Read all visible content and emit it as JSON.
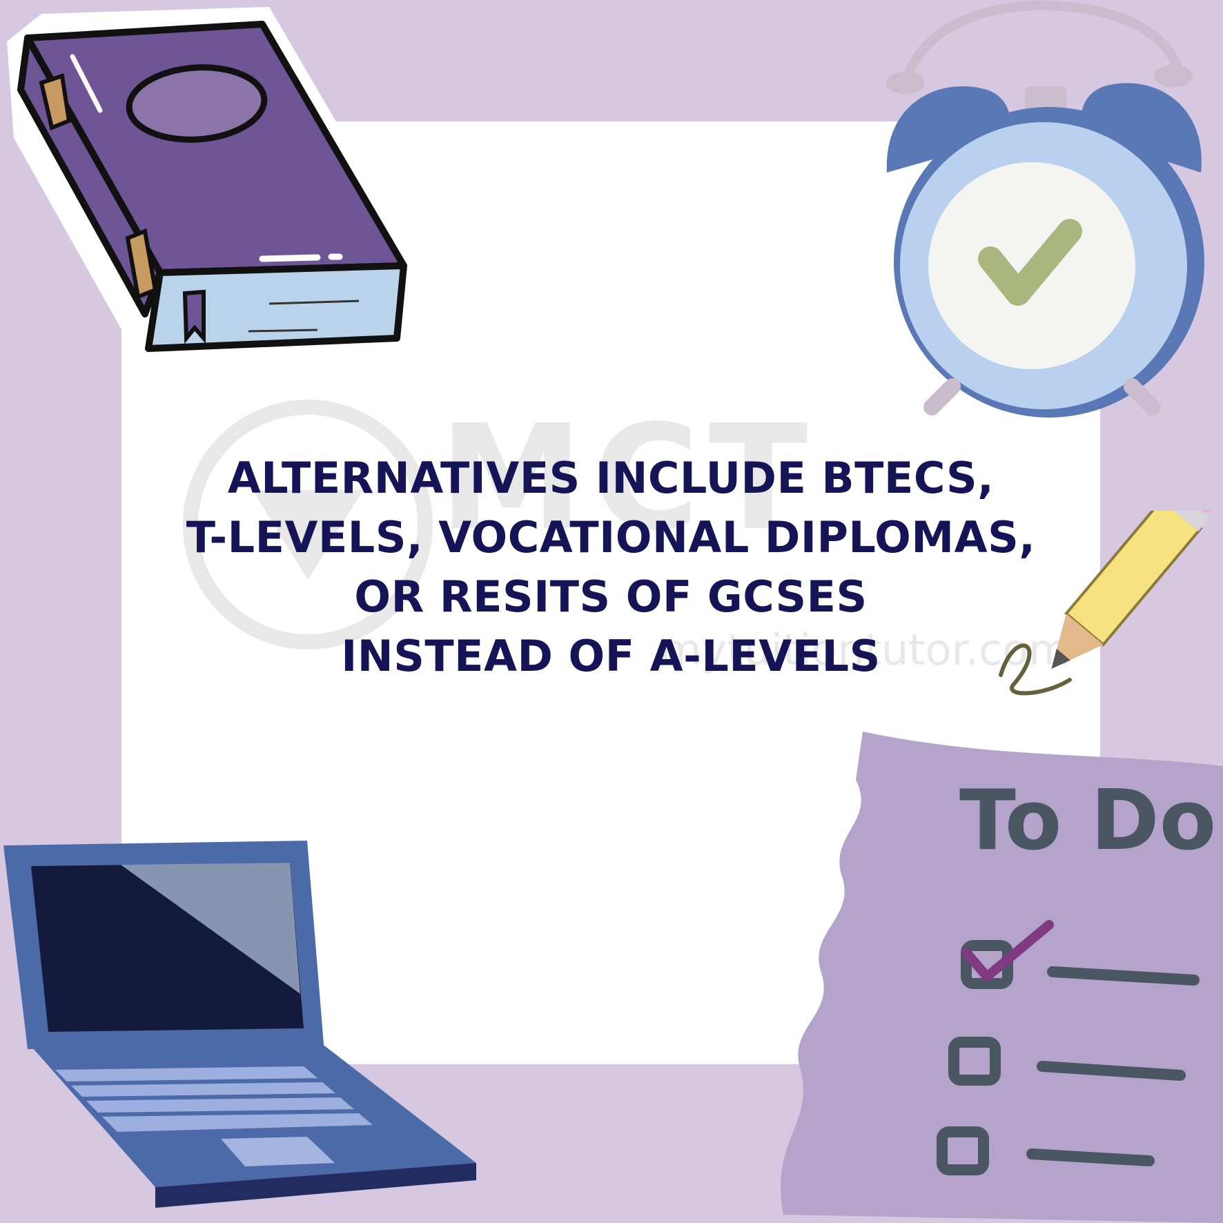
{
  "headline": {
    "lines": [
      "ALTERNATIVES INCLUDE BTECS,",
      "T-LEVELS, VOCATIONAL DIPLOMAS,",
      "OR RESITS OF GCSES",
      "INSTEAD OF A-LEVELS"
    ]
  },
  "watermark": {
    "word": "MCT",
    "url": "mytuitiontutor.com"
  },
  "todo_note": {
    "title": "To Do."
  },
  "colors": {
    "background": "#d6c8e0",
    "card": "#ffffff",
    "headline": "#141456",
    "book": "#6e5596",
    "clock": "#5a78b6",
    "laptop": "#4d6aa8",
    "note": "#b4a4cc"
  },
  "icons": [
    "book-icon",
    "alarm-clock-icon",
    "pencil-icon",
    "laptop-icon",
    "todo-note-icon"
  ]
}
